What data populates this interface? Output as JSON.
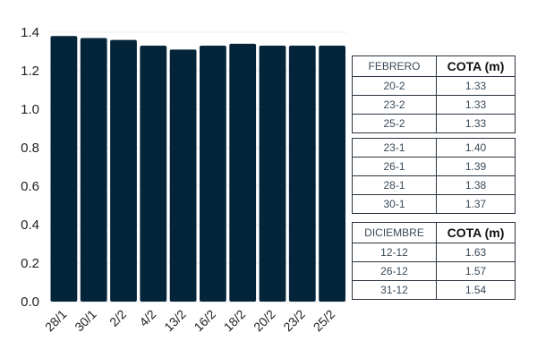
{
  "chart_data": {
    "type": "bar",
    "categories": [
      "28/1",
      "30/1",
      "2/2",
      "4/2",
      "13/2",
      "16/2",
      "18/2",
      "20/2",
      "23/2",
      "25/2"
    ],
    "values": [
      1.38,
      1.37,
      1.36,
      1.33,
      1.31,
      1.33,
      1.34,
      1.33,
      1.33,
      1.33
    ],
    "ylim": [
      0,
      1.4
    ],
    "yticks": [
      "0.0",
      "0.2",
      "0.4",
      "0.6",
      "0.8",
      "1.0",
      "1.2",
      "1.4"
    ],
    "grid": true,
    "bar_color": "#04243a"
  },
  "table_febrero": {
    "headers": [
      "FEBRERO",
      "COTA (m)"
    ],
    "rows_top": [
      [
        "20-2",
        "1.33"
      ],
      [
        "23-2",
        "1.33"
      ],
      [
        "25-2",
        "1.33"
      ]
    ],
    "rows_bottom": [
      [
        "23-1",
        "1.40"
      ],
      [
        "26-1",
        "1.39"
      ],
      [
        "28-1",
        "1.38"
      ],
      [
        "30-1",
        "1.37"
      ]
    ]
  },
  "table_diciembre": {
    "headers": [
      "DICIEMBRE",
      "COTA (m)"
    ],
    "rows": [
      [
        "12-12",
        "1.63"
      ],
      [
        "26-12",
        "1.57"
      ],
      [
        "31-12",
        "1.54"
      ]
    ]
  }
}
